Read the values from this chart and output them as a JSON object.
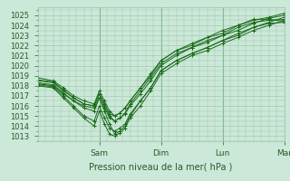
{
  "bg_color": "#cce8d8",
  "grid_color": "#99c4aa",
  "line_color": "#1a6b1a",
  "ylabel_text": "Pression niveau de la mer( hPa )",
  "yticks": [
    1013,
    1014,
    1015,
    1016,
    1017,
    1018,
    1019,
    1020,
    1021,
    1022,
    1023,
    1024,
    1025
  ],
  "ylim": [
    1012.5,
    1025.8
  ],
  "xlim": [
    0,
    96
  ],
  "xtick_positions": [
    24,
    48,
    72,
    96
  ],
  "xtick_labels": [
    "Sam",
    "Dim",
    "Lun",
    "Mar"
  ],
  "vlines": [
    24,
    48,
    72,
    96
  ],
  "font_color": "#2a5a2a",
  "series": [
    [
      0,
      1018.2,
      6,
      1018.0,
      10,
      1017.2,
      14,
      1016.5,
      18,
      1016.0,
      22,
      1015.8,
      24,
      1016.8,
      26,
      1015.5,
      28,
      1014.2,
      30,
      1013.2,
      32,
      1013.5,
      34,
      1014.0,
      36,
      1015.0,
      40,
      1016.5,
      44,
      1017.8,
      48,
      1019.5,
      54,
      1020.5,
      60,
      1021.2,
      66,
      1021.8,
      72,
      1022.5,
      78,
      1023.0,
      84,
      1023.8,
      90,
      1024.3,
      96,
      1024.8
    ],
    [
      0,
      1018.5,
      6,
      1018.3,
      10,
      1017.5,
      14,
      1016.8,
      18,
      1016.2,
      22,
      1016.0,
      24,
      1017.2,
      26,
      1016.0,
      28,
      1015.0,
      30,
      1014.5,
      32,
      1014.8,
      34,
      1015.2,
      36,
      1016.0,
      40,
      1017.2,
      44,
      1018.5,
      48,
      1020.0,
      54,
      1021.0,
      60,
      1021.8,
      66,
      1022.3,
      72,
      1023.0,
      78,
      1023.5,
      84,
      1024.2,
      90,
      1024.7,
      96,
      1025.0
    ],
    [
      0,
      1018.0,
      6,
      1017.8,
      10,
      1016.8,
      14,
      1015.8,
      18,
      1014.8,
      22,
      1014.0,
      24,
      1015.5,
      26,
      1014.2,
      28,
      1013.2,
      30,
      1013.0,
      32,
      1013.3,
      34,
      1013.8,
      36,
      1014.8,
      40,
      1016.0,
      44,
      1017.5,
      48,
      1019.2,
      54,
      1020.2,
      60,
      1021.0,
      66,
      1021.5,
      72,
      1022.2,
      78,
      1022.8,
      84,
      1023.5,
      90,
      1024.0,
      96,
      1024.5
    ],
    [
      0,
      1018.8,
      6,
      1018.5,
      10,
      1017.8,
      14,
      1017.0,
      18,
      1016.5,
      22,
      1016.2,
      24,
      1017.5,
      26,
      1016.5,
      28,
      1015.5,
      30,
      1015.0,
      32,
      1015.3,
      34,
      1015.8,
      36,
      1016.5,
      40,
      1017.8,
      44,
      1019.0,
      48,
      1020.5,
      54,
      1021.5,
      60,
      1022.2,
      66,
      1022.8,
      72,
      1023.5,
      78,
      1024.0,
      84,
      1024.5,
      90,
      1024.8,
      96,
      1025.2
    ],
    [
      0,
      1018.3,
      6,
      1018.1,
      10,
      1017.3,
      14,
      1016.5,
      18,
      1015.8,
      22,
      1015.5,
      24,
      1016.8,
      26,
      1015.8,
      28,
      1014.8,
      30,
      1014.5,
      32,
      1014.8,
      34,
      1015.3,
      36,
      1016.2,
      40,
      1017.5,
      44,
      1018.8,
      48,
      1020.2,
      54,
      1021.2,
      60,
      1021.8,
      66,
      1022.5,
      72,
      1023.0,
      78,
      1023.8,
      84,
      1024.3,
      90,
      1024.5,
      96,
      1024.6
    ],
    [
      0,
      1018.6,
      6,
      1018.4,
      10,
      1017.6,
      14,
      1016.8,
      18,
      1016.2,
      22,
      1016.0,
      24,
      1017.2,
      26,
      1016.2,
      28,
      1015.2,
      30,
      1015.0,
      32,
      1015.3,
      34,
      1015.8,
      36,
      1016.5,
      40,
      1017.8,
      44,
      1019.2,
      48,
      1020.5,
      54,
      1021.5,
      60,
      1022.0,
      66,
      1022.8,
      72,
      1023.2,
      78,
      1024.0,
      84,
      1024.6,
      90,
      1024.6,
      96,
      1024.4
    ],
    [
      0,
      1018.1,
      6,
      1017.9,
      10,
      1017.0,
      14,
      1016.0,
      18,
      1015.0,
      22,
      1014.5,
      24,
      1016.0,
      26,
      1014.8,
      28,
      1013.8,
      30,
      1013.5,
      32,
      1013.8,
      34,
      1014.2,
      36,
      1015.2,
      40,
      1016.5,
      44,
      1017.8,
      48,
      1019.5,
      54,
      1020.5,
      60,
      1021.2,
      66,
      1021.8,
      72,
      1022.5,
      78,
      1023.2,
      84,
      1023.8,
      90,
      1024.2,
      96,
      1024.3
    ]
  ]
}
